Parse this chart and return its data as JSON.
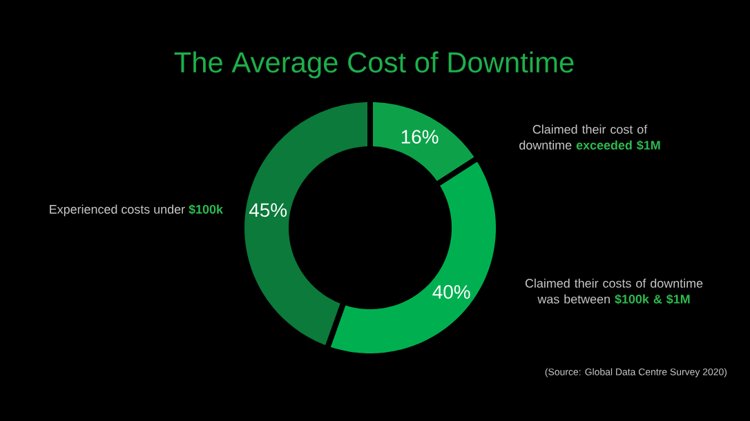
{
  "chart_data": {
    "type": "donut",
    "title": "The Average Cost of Downtime",
    "categories": [
      "Claimed their cost of downtime **exceeded $1M**",
      "Claimed their costs of downtime was between **$100k & $1M**",
      "Experienced costs under **$100k**"
    ],
    "values": [
      16,
      40,
      45
    ],
    "value_labels": [
      "16%",
      "40%",
      "45%"
    ],
    "colors": [
      "#0da24a",
      "#00b050",
      "#0b7a3a"
    ],
    "annotations": [
      "(Source: Global Data Centre Survey 2020)"
    ]
  }
}
